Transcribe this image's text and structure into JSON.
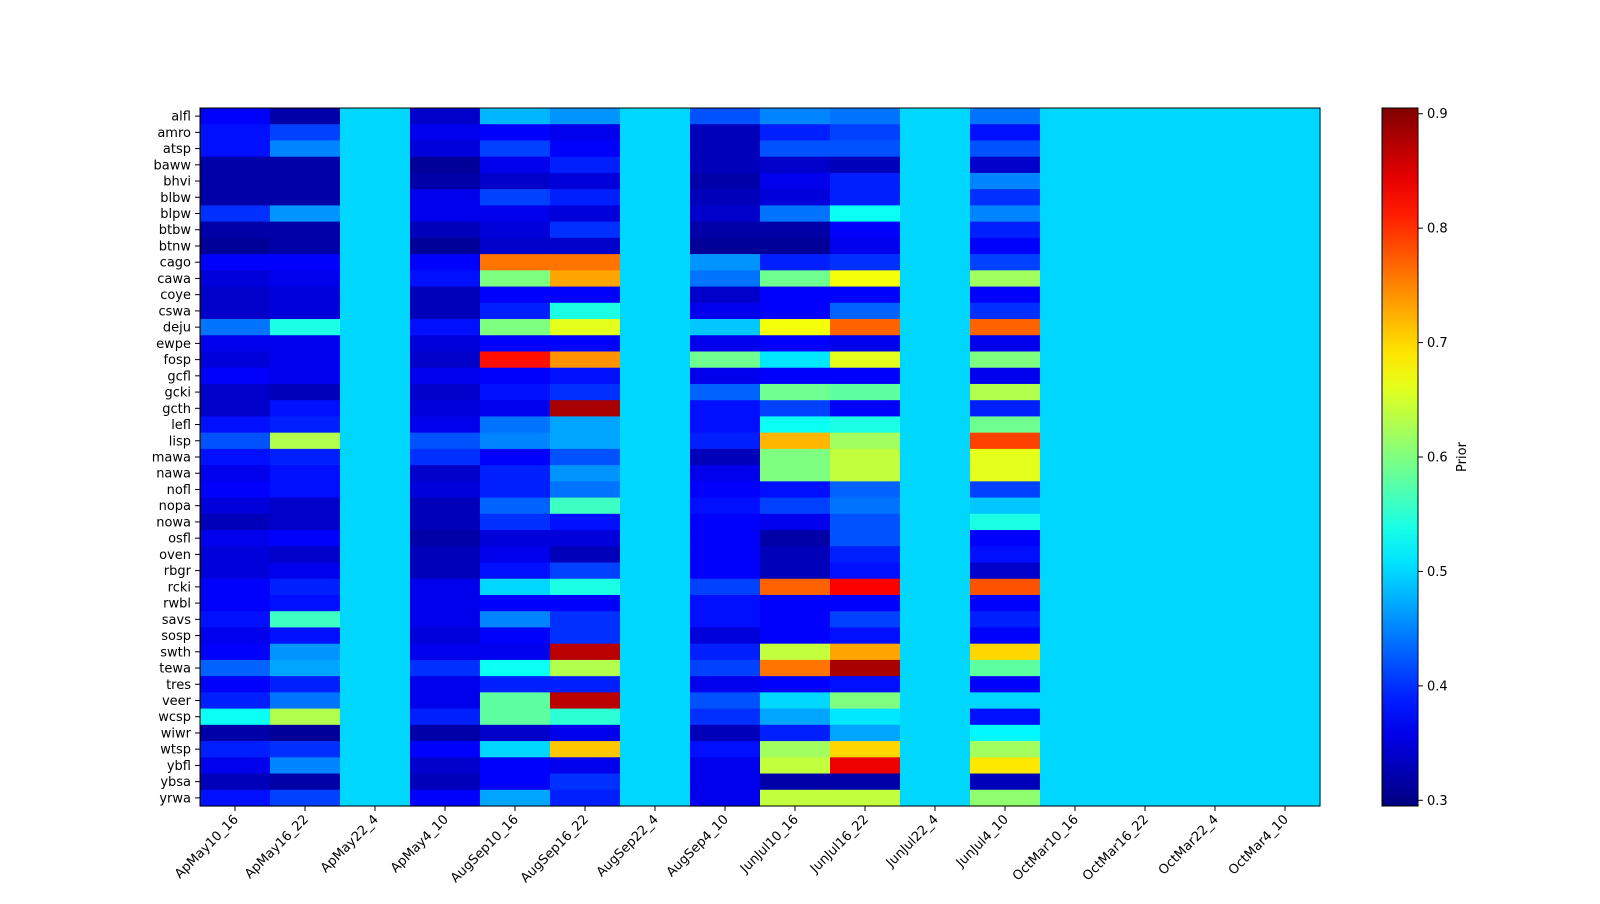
{
  "chart_data": {
    "type": "heatmap",
    "title": "",
    "xlabel": "",
    "ylabel": "",
    "x_categories": [
      "ApMay10_16",
      "ApMay16_22",
      "ApMay22_4",
      "ApMay4_10",
      "AugSep10_16",
      "AugSep16_22",
      "AugSep22_4",
      "AugSep4_10",
      "JunJul10_16",
      "JunJul16_22",
      "JunJul22_4",
      "JunJul4_10",
      "OctMar10_16",
      "OctMar16_22",
      "OctMar22_4",
      "OctMar4_10"
    ],
    "y_categories": [
      "alfl",
      "amro",
      "atsp",
      "baww",
      "bhvi",
      "blbw",
      "blpw",
      "btbw",
      "btnw",
      "cago",
      "cawa",
      "coye",
      "cswa",
      "deju",
      "ewpe",
      "fosp",
      "gcfl",
      "gcki",
      "gcth",
      "lefl",
      "lisp",
      "mawa",
      "nawa",
      "nofl",
      "nopa",
      "nowa",
      "osfl",
      "oven",
      "rbgr",
      "rcki",
      "rwbl",
      "savs",
      "sosp",
      "swth",
      "tewa",
      "tres",
      "veer",
      "wcsp",
      "wiwr",
      "wtsp",
      "ybfl",
      "ybsa",
      "yrwa"
    ],
    "values": [
      [
        0.37,
        0.32,
        0.5,
        0.34,
        0.48,
        0.46,
        0.5,
        0.42,
        0.45,
        0.44,
        0.5,
        0.44,
        0.5,
        0.5,
        0.5,
        0.5
      ],
      [
        0.38,
        0.41,
        0.5,
        0.36,
        0.37,
        0.36,
        0.5,
        0.33,
        0.39,
        0.41,
        0.5,
        0.38,
        0.5,
        0.5,
        0.5,
        0.5
      ],
      [
        0.38,
        0.45,
        0.5,
        0.35,
        0.41,
        0.37,
        0.5,
        0.33,
        0.42,
        0.42,
        0.5,
        0.42,
        0.5,
        0.5,
        0.5,
        0.5
      ],
      [
        0.32,
        0.32,
        0.5,
        0.31,
        0.36,
        0.39,
        0.5,
        0.33,
        0.34,
        0.33,
        0.5,
        0.34,
        0.5,
        0.5,
        0.5,
        0.5
      ],
      [
        0.32,
        0.32,
        0.5,
        0.32,
        0.34,
        0.35,
        0.5,
        0.32,
        0.36,
        0.39,
        0.5,
        0.45,
        0.5,
        0.5,
        0.5,
        0.5
      ],
      [
        0.32,
        0.32,
        0.5,
        0.36,
        0.41,
        0.39,
        0.5,
        0.33,
        0.35,
        0.39,
        0.5,
        0.4,
        0.5,
        0.5,
        0.5,
        0.5
      ],
      [
        0.4,
        0.46,
        0.5,
        0.36,
        0.36,
        0.35,
        0.5,
        0.34,
        0.44,
        0.53,
        0.5,
        0.45,
        0.5,
        0.5,
        0.5,
        0.5
      ],
      [
        0.32,
        0.32,
        0.5,
        0.33,
        0.35,
        0.4,
        0.5,
        0.32,
        0.32,
        0.37,
        0.5,
        0.39,
        0.5,
        0.5,
        0.5,
        0.5
      ],
      [
        0.31,
        0.32,
        0.5,
        0.31,
        0.34,
        0.34,
        0.5,
        0.31,
        0.31,
        0.36,
        0.5,
        0.37,
        0.5,
        0.5,
        0.5,
        0.5
      ],
      [
        0.37,
        0.37,
        0.5,
        0.37,
        0.76,
        0.76,
        0.5,
        0.46,
        0.39,
        0.4,
        0.5,
        0.41,
        0.5,
        0.5,
        0.5,
        0.5
      ],
      [
        0.35,
        0.36,
        0.5,
        0.38,
        0.6,
        0.73,
        0.5,
        0.44,
        0.59,
        0.67,
        0.5,
        0.62,
        0.5,
        0.5,
        0.5,
        0.5
      ],
      [
        0.34,
        0.35,
        0.5,
        0.33,
        0.37,
        0.37,
        0.5,
        0.34,
        0.37,
        0.37,
        0.5,
        0.37,
        0.5,
        0.5,
        0.5,
        0.5
      ],
      [
        0.34,
        0.35,
        0.5,
        0.33,
        0.39,
        0.54,
        0.5,
        0.36,
        0.37,
        0.43,
        0.5,
        0.4,
        0.5,
        0.5,
        0.5,
        0.5
      ],
      [
        0.44,
        0.54,
        0.5,
        0.38,
        0.6,
        0.66,
        0.5,
        0.49,
        0.67,
        0.77,
        0.5,
        0.77,
        0.5,
        0.5,
        0.5,
        0.5
      ],
      [
        0.36,
        0.36,
        0.5,
        0.35,
        0.37,
        0.37,
        0.5,
        0.36,
        0.37,
        0.36,
        0.5,
        0.36,
        0.5,
        0.5,
        0.5,
        0.5
      ],
      [
        0.35,
        0.36,
        0.5,
        0.34,
        0.82,
        0.74,
        0.5,
        0.59,
        0.51,
        0.66,
        0.5,
        0.6,
        0.5,
        0.5,
        0.5,
        0.5
      ],
      [
        0.37,
        0.36,
        0.5,
        0.36,
        0.37,
        0.38,
        0.5,
        0.36,
        0.37,
        0.37,
        0.5,
        0.36,
        0.5,
        0.5,
        0.5,
        0.5
      ],
      [
        0.34,
        0.33,
        0.5,
        0.34,
        0.38,
        0.4,
        0.5,
        0.43,
        0.59,
        0.58,
        0.5,
        0.63,
        0.5,
        0.5,
        0.5,
        0.5
      ],
      [
        0.34,
        0.38,
        0.5,
        0.35,
        0.36,
        0.88,
        0.5,
        0.38,
        0.41,
        0.37,
        0.5,
        0.39,
        0.5,
        0.5,
        0.5,
        0.5
      ],
      [
        0.38,
        0.39,
        0.5,
        0.36,
        0.44,
        0.47,
        0.5,
        0.38,
        0.53,
        0.54,
        0.5,
        0.59,
        0.5,
        0.5,
        0.5,
        0.5
      ],
      [
        0.42,
        0.63,
        0.5,
        0.42,
        0.45,
        0.47,
        0.5,
        0.39,
        0.72,
        0.62,
        0.5,
        0.79,
        0.5,
        0.5,
        0.5,
        0.5
      ],
      [
        0.38,
        0.39,
        0.5,
        0.4,
        0.37,
        0.42,
        0.5,
        0.33,
        0.6,
        0.64,
        0.5,
        0.66,
        0.5,
        0.5,
        0.5,
        0.5
      ],
      [
        0.36,
        0.38,
        0.5,
        0.34,
        0.39,
        0.46,
        0.5,
        0.36,
        0.6,
        0.64,
        0.5,
        0.66,
        0.5,
        0.5,
        0.5,
        0.5
      ],
      [
        0.37,
        0.38,
        0.5,
        0.35,
        0.39,
        0.44,
        0.5,
        0.37,
        0.38,
        0.43,
        0.5,
        0.41,
        0.5,
        0.5,
        0.5,
        0.5
      ],
      [
        0.35,
        0.34,
        0.5,
        0.33,
        0.43,
        0.56,
        0.5,
        0.38,
        0.41,
        0.44,
        0.5,
        0.49,
        0.5,
        0.5,
        0.5,
        0.5
      ],
      [
        0.33,
        0.34,
        0.5,
        0.33,
        0.4,
        0.38,
        0.5,
        0.37,
        0.36,
        0.42,
        0.5,
        0.54,
        0.5,
        0.5,
        0.5,
        0.5
      ],
      [
        0.36,
        0.37,
        0.5,
        0.32,
        0.35,
        0.35,
        0.5,
        0.37,
        0.32,
        0.42,
        0.5,
        0.37,
        0.5,
        0.5,
        0.5,
        0.5
      ],
      [
        0.35,
        0.34,
        0.5,
        0.33,
        0.36,
        0.33,
        0.5,
        0.37,
        0.33,
        0.39,
        0.5,
        0.38,
        0.5,
        0.5,
        0.5,
        0.5
      ],
      [
        0.35,
        0.36,
        0.5,
        0.33,
        0.38,
        0.41,
        0.5,
        0.37,
        0.33,
        0.38,
        0.5,
        0.34,
        0.5,
        0.5,
        0.5,
        0.5
      ],
      [
        0.37,
        0.39,
        0.5,
        0.36,
        0.5,
        0.54,
        0.5,
        0.41,
        0.77,
        0.83,
        0.5,
        0.78,
        0.5,
        0.5,
        0.5,
        0.5
      ],
      [
        0.37,
        0.38,
        0.5,
        0.36,
        0.37,
        0.37,
        0.5,
        0.38,
        0.37,
        0.37,
        0.5,
        0.37,
        0.5,
        0.5,
        0.5,
        0.5
      ],
      [
        0.38,
        0.56,
        0.5,
        0.36,
        0.45,
        0.4,
        0.5,
        0.38,
        0.37,
        0.41,
        0.5,
        0.39,
        0.5,
        0.5,
        0.5,
        0.5
      ],
      [
        0.36,
        0.38,
        0.5,
        0.35,
        0.37,
        0.4,
        0.5,
        0.35,
        0.37,
        0.38,
        0.5,
        0.37,
        0.5,
        0.5,
        0.5,
        0.5
      ],
      [
        0.37,
        0.46,
        0.5,
        0.36,
        0.36,
        0.87,
        0.5,
        0.39,
        0.64,
        0.73,
        0.5,
        0.7,
        0.5,
        0.5,
        0.5,
        0.5
      ],
      [
        0.43,
        0.47,
        0.5,
        0.4,
        0.53,
        0.63,
        0.5,
        0.41,
        0.76,
        0.88,
        0.5,
        0.58,
        0.5,
        0.5,
        0.5,
        0.5
      ],
      [
        0.37,
        0.39,
        0.5,
        0.36,
        0.39,
        0.39,
        0.5,
        0.36,
        0.37,
        0.38,
        0.5,
        0.37,
        0.5,
        0.5,
        0.5,
        0.5
      ],
      [
        0.39,
        0.44,
        0.5,
        0.36,
        0.58,
        0.87,
        0.5,
        0.42,
        0.5,
        0.6,
        0.5,
        0.5,
        0.5,
        0.5,
        0.5,
        0.5
      ],
      [
        0.53,
        0.63,
        0.5,
        0.39,
        0.58,
        0.55,
        0.5,
        0.4,
        0.47,
        0.51,
        0.5,
        0.38,
        0.5,
        0.5,
        0.5,
        0.5
      ],
      [
        0.32,
        0.31,
        0.5,
        0.32,
        0.34,
        0.36,
        0.5,
        0.33,
        0.39,
        0.47,
        0.5,
        0.52,
        0.5,
        0.5,
        0.5,
        0.5
      ],
      [
        0.39,
        0.4,
        0.5,
        0.37,
        0.5,
        0.71,
        0.5,
        0.38,
        0.62,
        0.7,
        0.5,
        0.62,
        0.5,
        0.5,
        0.5,
        0.5
      ],
      [
        0.36,
        0.45,
        0.5,
        0.34,
        0.37,
        0.36,
        0.5,
        0.36,
        0.64,
        0.84,
        0.5,
        0.69,
        0.5,
        0.5,
        0.5,
        0.5
      ],
      [
        0.33,
        0.32,
        0.5,
        0.33,
        0.37,
        0.4,
        0.5,
        0.36,
        0.32,
        0.32,
        0.5,
        0.33,
        0.5,
        0.5,
        0.5,
        0.5
      ],
      [
        0.38,
        0.41,
        0.5,
        0.37,
        0.47,
        0.39,
        0.5,
        0.36,
        0.64,
        0.64,
        0.5,
        0.61,
        0.5,
        0.5,
        0.5,
        0.5
      ]
    ],
    "colorscale": "jet",
    "vmin": 0.295,
    "vmax": 0.905,
    "colorbar": {
      "label": "Prior",
      "ticks": [
        0.3,
        0.4,
        0.5,
        0.6,
        0.7,
        0.8,
        0.9
      ],
      "tick_labels": [
        "0.3",
        "0.4",
        "0.5",
        "0.6",
        "0.7",
        "0.8",
        "0.9"
      ]
    },
    "grid": false
  }
}
